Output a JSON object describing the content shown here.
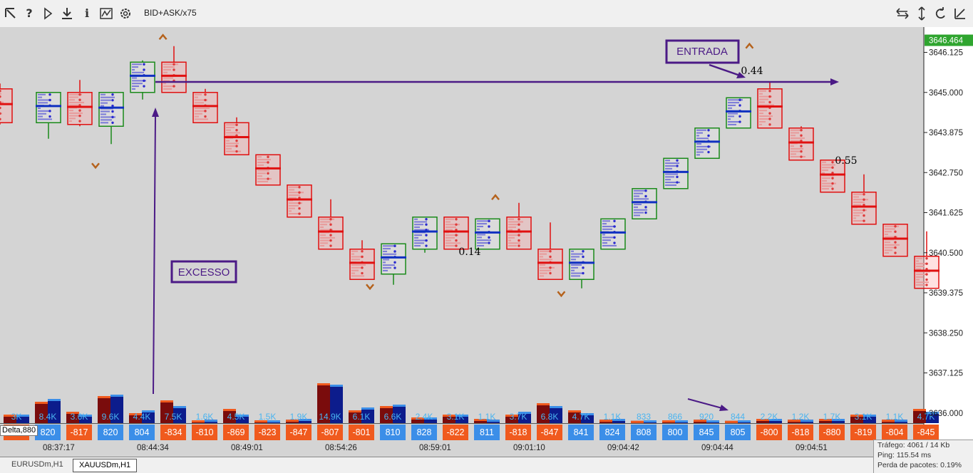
{
  "toolbar": {
    "icons": [
      "cursor-arrow-icon",
      "help-icon",
      "play-icon",
      "download-icon",
      "info-icon",
      "chart-settings-icon",
      "gear-icon"
    ],
    "right_icons": [
      "swap-arrows-icon",
      "vertical-arrows-icon",
      "refresh-icon",
      "edit-icon"
    ],
    "symbol_mode": "BID+ASK/x75"
  },
  "tabs": [
    "EURUSDm,H1",
    "XAUUSDm,H1"
  ],
  "status": {
    "traffic": "Tráfego: 4061 / 14 Kb",
    "ping": "Ping: 115.54 ms",
    "loss": "Perda de pacotes: 0.19%"
  },
  "delta_label": "Delta,880",
  "annotations": {
    "entrada": "ENTRADA",
    "excesso": "EXCESSO",
    "values": [
      "0.44",
      "0.55",
      "0.14"
    ]
  },
  "colors": {
    "bull": "#1a8a1a",
    "bear": "#e01010",
    "poc_bull": "#1030c0",
    "annotation": "#4b1a86",
    "price_tag": "#2fa52f",
    "vol_dark_red": "#7a0c0c",
    "vol_dark_blue": "#0c1c8c",
    "delta_orange": "#f05a1e",
    "delta_blue": "#3b8ee8",
    "volume_text": "#4ab4f0"
  },
  "chart_data": {
    "type": "footprint-candlestick",
    "y_ticks": [
      "3646.125",
      "3645.000",
      "3643.875",
      "3642.750",
      "3641.625",
      "3640.500",
      "3639.375",
      "3638.250",
      "3637.125",
      "3636.000"
    ],
    "current_price": "3646.464",
    "time_labels": [
      "08:37:17",
      "08:44:34",
      "08:49:01",
      "08:54:26",
      "08:59:01",
      "09:01:10",
      "09:04:42",
      "09:04:44",
      "09:04:51"
    ],
    "candles": [
      {
        "dir": "bear",
        "open": 3645.1,
        "close": 3644.15,
        "high": 3645.25,
        "low": 3644.1
      },
      {
        "dir": "bull",
        "open": 3644.15,
        "close": 3645.0,
        "high": 3645.0,
        "low": 3643.7
      },
      {
        "dir": "bear",
        "open": 3645.0,
        "close": 3644.1,
        "high": 3645.35,
        "low": 3644.05
      },
      {
        "dir": "bull",
        "open": 3644.05,
        "close": 3645.0,
        "high": 3645.0,
        "low": 3643.55
      },
      {
        "dir": "bull",
        "open": 3645.0,
        "close": 3645.85,
        "high": 3645.9,
        "low": 3644.8
      },
      {
        "dir": "bear",
        "open": 3645.85,
        "close": 3645.0,
        "high": 3646.3,
        "low": 3645.0
      },
      {
        "dir": "bear",
        "open": 3645.0,
        "close": 3644.15,
        "high": 3645.1,
        "low": 3644.15
      },
      {
        "dir": "bear",
        "open": 3644.15,
        "close": 3643.25,
        "high": 3644.3,
        "low": 3643.25
      },
      {
        "dir": "bear",
        "open": 3643.25,
        "close": 3642.4,
        "high": 3643.25,
        "low": 3642.4
      },
      {
        "dir": "bear",
        "open": 3642.4,
        "close": 3641.5,
        "high": 3642.4,
        "low": 3641.5
      },
      {
        "dir": "bear",
        "open": 3641.5,
        "close": 3640.6,
        "high": 3642.0,
        "low": 3640.6
      },
      {
        "dir": "bear",
        "open": 3640.6,
        "close": 3639.75,
        "high": 3640.85,
        "low": 3639.75
      },
      {
        "dir": "bull",
        "open": 3639.9,
        "close": 3640.75,
        "high": 3640.75,
        "low": 3639.6
      },
      {
        "dir": "bull",
        "open": 3640.6,
        "close": 3641.5,
        "high": 3641.5,
        "low": 3640.5
      },
      {
        "dir": "bear",
        "open": 3641.5,
        "close": 3640.6,
        "high": 3641.5,
        "low": 3640.6
      },
      {
        "dir": "bull",
        "open": 3640.6,
        "close": 3641.45,
        "high": 3641.45,
        "low": 3640.6
      },
      {
        "dir": "bear",
        "open": 3641.5,
        "close": 3640.6,
        "high": 3641.9,
        "low": 3640.6
      },
      {
        "dir": "bear",
        "open": 3640.6,
        "close": 3639.75,
        "high": 3641.35,
        "low": 3639.75
      },
      {
        "dir": "bull",
        "open": 3639.75,
        "close": 3640.6,
        "high": 3640.6,
        "low": 3639.5
      },
      {
        "dir": "bull",
        "open": 3640.6,
        "close": 3641.45,
        "high": 3641.45,
        "low": 3640.6
      },
      {
        "dir": "bull",
        "open": 3641.45,
        "close": 3642.3,
        "high": 3642.3,
        "low": 3641.45
      },
      {
        "dir": "bull",
        "open": 3642.3,
        "close": 3643.15,
        "high": 3643.15,
        "low": 3642.3
      },
      {
        "dir": "bull",
        "open": 3643.15,
        "close": 3644.0,
        "high": 3644.0,
        "low": 3643.15
      },
      {
        "dir": "bull",
        "open": 3644.0,
        "close": 3644.85,
        "high": 3644.85,
        "low": 3644.0
      },
      {
        "dir": "bear",
        "open": 3645.1,
        "close": 3644.0,
        "high": 3645.3,
        "low": 3644.0
      },
      {
        "dir": "bear",
        "open": 3644.0,
        "close": 3643.1,
        "high": 3644.05,
        "low": 3643.1
      },
      {
        "dir": "bear",
        "open": 3643.1,
        "close": 3642.2,
        "high": 3643.1,
        "low": 3642.2
      },
      {
        "dir": "bear",
        "open": 3642.2,
        "close": 3641.3,
        "high": 3642.7,
        "low": 3641.3
      },
      {
        "dir": "bear",
        "open": 3641.3,
        "close": 3640.4,
        "high": 3641.3,
        "low": 3640.4
      },
      {
        "dir": "bear",
        "open": 3640.4,
        "close": 3639.5,
        "high": 3641.1,
        "low": 3639.5
      }
    ],
    "volume_labels": [
      "3K",
      "8.4K",
      "3.6K",
      "9.6K",
      "4.4K",
      "7.5K",
      "1.6K",
      "4.5K",
      "1.5K",
      "1.9K",
      "14.9K",
      "6.1K",
      "6.6K",
      "2.4K",
      "3.1K",
      "1.1K",
      "3.7K",
      "6.8K",
      "4.7K",
      "1.1K",
      "833",
      "866",
      "920",
      "844",
      "2.2K",
      "1.2K",
      "1.7K",
      "3.1K",
      "1.1K",
      "4.7K"
    ],
    "volume_bars": [
      [
        0.3,
        0.3
      ],
      [
        0.75,
        0.85
      ],
      [
        0.4,
        0.3
      ],
      [
        0.95,
        1.0
      ],
      [
        0.35,
        0.45
      ],
      [
        0.8,
        0.6
      ],
      [
        0.1,
        0.12
      ],
      [
        0.5,
        0.3
      ],
      [
        0.1,
        0.1
      ],
      [
        0.12,
        0.15
      ],
      [
        1.4,
        1.35
      ],
      [
        0.45,
        0.55
      ],
      [
        0.6,
        0.65
      ],
      [
        0.2,
        0.2
      ],
      [
        0.3,
        0.3
      ],
      [
        0.15,
        0.12
      ],
      [
        0.3,
        0.4
      ],
      [
        0.7,
        0.6
      ],
      [
        0.45,
        0.35
      ],
      [
        0.12,
        0.15
      ],
      [
        0.08,
        0.1
      ],
      [
        0.1,
        0.1
      ],
      [
        0.12,
        0.1
      ],
      [
        0.08,
        0.1
      ],
      [
        0.15,
        0.15
      ],
      [
        0.12,
        0.12
      ],
      [
        0.15,
        0.15
      ],
      [
        0.3,
        0.3
      ],
      [
        0.12,
        0.12
      ],
      [
        0.5,
        0.4
      ]
    ],
    "delta_values": [
      -880,
      820,
      -817,
      820,
      804,
      -834,
      -810,
      -869,
      -823,
      -847,
      -807,
      -801,
      810,
      828,
      -822,
      811,
      -818,
      -847,
      841,
      824,
      808,
      800,
      845,
      805,
      -800,
      -818,
      -880,
      -819,
      -804,
      -845
    ]
  }
}
